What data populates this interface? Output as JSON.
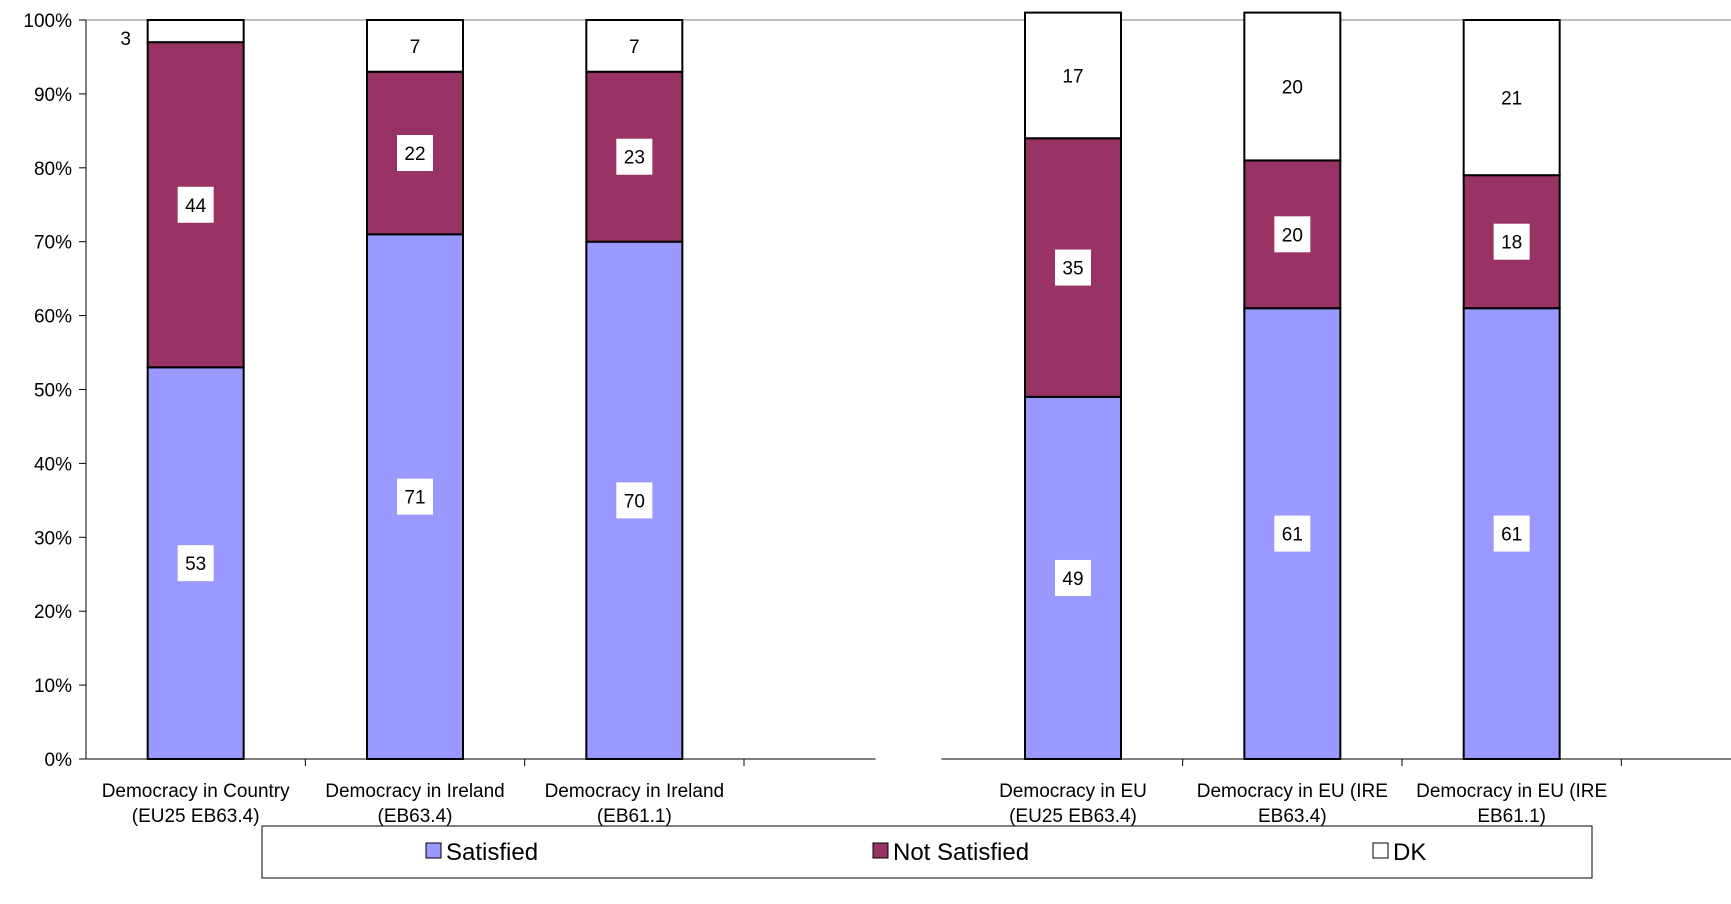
{
  "chart_data": {
    "type": "bar",
    "stacked": true,
    "percent_stacked": true,
    "y_ticks": [
      "0%",
      "10%",
      "20%",
      "30%",
      "40%",
      "50%",
      "60%",
      "70%",
      "80%",
      "90%",
      "100%"
    ],
    "ylim": [
      0,
      100
    ],
    "grid": false,
    "legend_position": "bottom",
    "categories": [
      {
        "line1": "Democracy in Country",
        "line2": "(EU25 EB63.4)"
      },
      {
        "line1": "Democracy in Ireland",
        "line2": "(EB63.4)"
      },
      {
        "line1": "Democracy in Ireland",
        "line2": "(EB61.1)"
      },
      {
        "line1": "",
        "line2": ""
      },
      {
        "line1": "Democracy in EU",
        "line2": "(EU25 EB63.4)"
      },
      {
        "line1": "Democracy in EU (IRE",
        "line2": "EB63.4)"
      },
      {
        "line1": "Democracy in EU (IRE",
        "line2": "EB61.1)"
      }
    ],
    "series": [
      {
        "name": "Satisfied",
        "color": "#9999FF",
        "values": [
          53,
          71,
          70,
          null,
          49,
          61,
          61
        ]
      },
      {
        "name": "Not Satisfied",
        "color": "#993366",
        "values": [
          44,
          22,
          23,
          null,
          35,
          20,
          18
        ]
      },
      {
        "name": "DK",
        "color": "#FFFFFF",
        "values": [
          3,
          7,
          7,
          null,
          17,
          20,
          21
        ]
      }
    ]
  }
}
